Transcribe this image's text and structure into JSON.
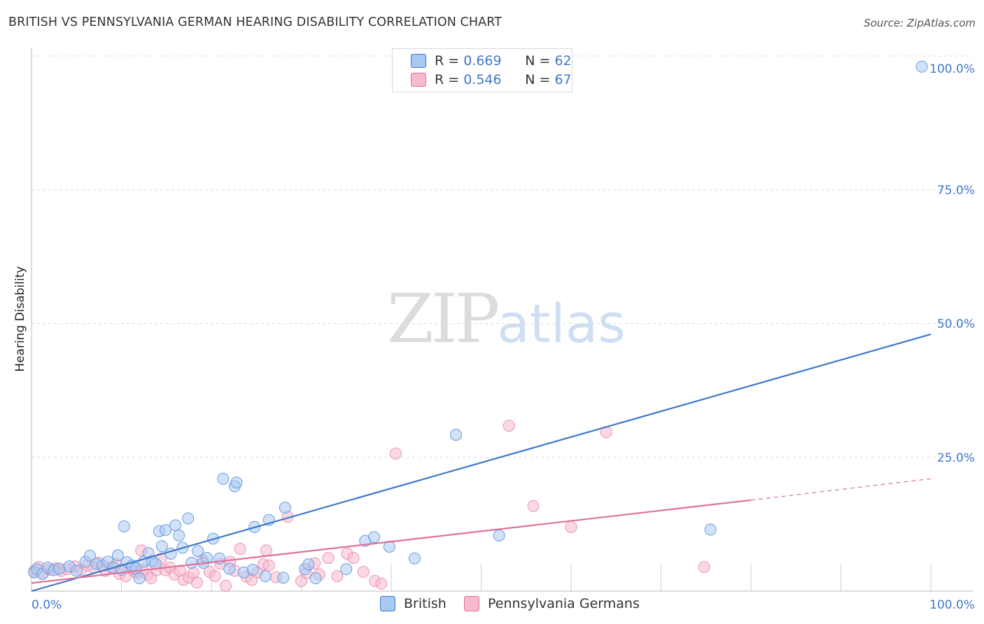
{
  "title": "BRITISH VS PENNSYLVANIA GERMAN HEARING DISABILITY CORRELATION CHART",
  "source": "Source: ZipAtlas.com",
  "watermark": {
    "zip": "ZIP",
    "atlas": "atlas"
  },
  "legend": {
    "rows": [
      {
        "r_label": "R =",
        "r_value": "0.669",
        "n_label": "N =",
        "n_value": "62",
        "color": "#a9c8f2"
      },
      {
        "r_label": "R =",
        "r_value": "0.546",
        "n_label": "N =",
        "n_value": "67",
        "color": "#f7b9ce"
      }
    ]
  },
  "colors": {
    "british": "#3f78c9",
    "penn": "#e07099",
    "british_fill": "#a9c8f2",
    "penn_fill": "#f7b9ce"
  },
  "chart_data": {
    "type": "scatter",
    "title": "BRITISH VS PENNSYLVANIA GERMAN HEARING DISABILITY CORRELATION CHART",
    "xlabel": "",
    "ylabel": "Hearing Disability",
    "xlim": [
      0,
      100
    ],
    "ylim": [
      0,
      100
    ],
    "x_tick_labels": [
      "0.0%",
      "100.0%"
    ],
    "y_tick_labels": [
      "100.0%",
      "75.0%",
      "50.0%",
      "25.0%"
    ],
    "y_tick_values": [
      100,
      75,
      50,
      25
    ],
    "grid": true,
    "legend_position": "top-center",
    "series": [
      {
        "name": "British",
        "color": "#3f78c9",
        "trend": {
          "x": [
            0,
            100
          ],
          "y": [
            0,
            48
          ]
        },
        "points": [
          [
            0.3,
            3.5
          ],
          [
            0.6,
            4.1
          ],
          [
            1.2,
            3.2
          ],
          [
            1.8,
            4.4
          ],
          [
            2.5,
            3.9
          ],
          [
            3.1,
            4.2
          ],
          [
            4.2,
            4.6
          ],
          [
            5.0,
            3.8
          ],
          [
            6.0,
            5.5
          ],
          [
            6.5,
            6.6
          ],
          [
            7.2,
            5.1
          ],
          [
            7.9,
            4.8
          ],
          [
            8.5,
            5.5
          ],
          [
            9.1,
            4.4
          ],
          [
            9.6,
            6.7
          ],
          [
            10.0,
            4.0
          ],
          [
            10.3,
            12.1
          ],
          [
            10.6,
            5.4
          ],
          [
            11.2,
            4.8
          ],
          [
            11.6,
            4.2
          ],
          [
            12.0,
            2.4
          ],
          [
            12.5,
            5.5
          ],
          [
            13.0,
            7.1
          ],
          [
            13.4,
            5.6
          ],
          [
            13.8,
            5.1
          ],
          [
            14.2,
            11.2
          ],
          [
            14.5,
            8.4
          ],
          [
            14.9,
            11.4
          ],
          [
            15.5,
            7.0
          ],
          [
            16.0,
            12.3
          ],
          [
            16.4,
            10.4
          ],
          [
            16.8,
            8.1
          ],
          [
            17.4,
            13.6
          ],
          [
            17.8,
            5.3
          ],
          [
            18.5,
            7.5
          ],
          [
            19.1,
            5.3
          ],
          [
            19.5,
            6.2
          ],
          [
            20.2,
            9.8
          ],
          [
            20.9,
            6.1
          ],
          [
            21.3,
            21.0
          ],
          [
            22.0,
            4.2
          ],
          [
            22.6,
            19.6
          ],
          [
            22.8,
            20.3
          ],
          [
            23.6,
            3.5
          ],
          [
            24.6,
            4.0
          ],
          [
            24.8,
            12.0
          ],
          [
            26.0,
            2.8
          ],
          [
            26.4,
            13.3
          ],
          [
            28.0,
            2.5
          ],
          [
            28.2,
            15.6
          ],
          [
            30.4,
            4.1
          ],
          [
            30.8,
            5.0
          ],
          [
            31.6,
            2.4
          ],
          [
            35.0,
            4.1
          ],
          [
            37.1,
            9.4
          ],
          [
            38.1,
            10.1
          ],
          [
            39.8,
            8.3
          ],
          [
            42.6,
            6.1
          ],
          [
            47.2,
            29.2
          ],
          [
            52.0,
            10.4
          ],
          [
            75.5,
            11.5
          ],
          [
            99.0,
            98.0
          ]
        ]
      },
      {
        "name": "Pennsylvania Germans",
        "color": "#e07099",
        "trend": {
          "x": [
            0,
            80
          ],
          "y": [
            1.5,
            17
          ]
        },
        "trend_ext": {
          "x": [
            80,
            100
          ],
          "y": [
            17,
            21
          ]
        },
        "points": [
          [
            0.3,
            3.8
          ],
          [
            0.8,
            4.5
          ],
          [
            1.3,
            3.4
          ],
          [
            2.0,
            4.0
          ],
          [
            2.7,
            4.3
          ],
          [
            3.3,
            3.8
          ],
          [
            4.0,
            4.1
          ],
          [
            4.8,
            4.6
          ],
          [
            5.5,
            4.0
          ],
          [
            6.2,
            4.8
          ],
          [
            6.9,
            4.4
          ],
          [
            7.5,
            5.3
          ],
          [
            8.2,
            3.8
          ],
          [
            8.8,
            4.4
          ],
          [
            9.4,
            5.0
          ],
          [
            9.8,
            3.2
          ],
          [
            10.5,
            2.8
          ],
          [
            11.0,
            4.2
          ],
          [
            11.5,
            3.6
          ],
          [
            11.8,
            3.4
          ],
          [
            12.2,
            7.6
          ],
          [
            12.9,
            3.1
          ],
          [
            13.3,
            2.4
          ],
          [
            13.9,
            3.9
          ],
          [
            14.4,
            6.1
          ],
          [
            14.9,
            3.9
          ],
          [
            15.4,
            4.4
          ],
          [
            15.9,
            3.1
          ],
          [
            16.5,
            3.8
          ],
          [
            16.9,
            2.1
          ],
          [
            17.5,
            2.5
          ],
          [
            18.0,
            3.4
          ],
          [
            18.4,
            1.6
          ],
          [
            19.0,
            5.8
          ],
          [
            19.8,
            3.6
          ],
          [
            20.4,
            2.8
          ],
          [
            21.0,
            5.1
          ],
          [
            21.6,
            1.0
          ],
          [
            22.1,
            5.5
          ],
          [
            22.6,
            3.8
          ],
          [
            23.2,
            7.9
          ],
          [
            23.9,
            2.7
          ],
          [
            24.5,
            2.1
          ],
          [
            25.1,
            3.5
          ],
          [
            25.8,
            5.0
          ],
          [
            26.1,
            7.6
          ],
          [
            26.4,
            4.8
          ],
          [
            27.2,
            2.6
          ],
          [
            28.5,
            13.9
          ],
          [
            30.0,
            1.9
          ],
          [
            30.6,
            3.4
          ],
          [
            31.5,
            5.2
          ],
          [
            32.0,
            3.1
          ],
          [
            33.0,
            6.2
          ],
          [
            34.0,
            2.8
          ],
          [
            35.1,
            7.0
          ],
          [
            35.8,
            6.2
          ],
          [
            36.9,
            3.6
          ],
          [
            38.2,
            1.9
          ],
          [
            38.9,
            1.4
          ],
          [
            40.5,
            25.7
          ],
          [
            53.1,
            30.9
          ],
          [
            55.8,
            15.9
          ],
          [
            60.0,
            12.0
          ],
          [
            63.9,
            29.7
          ],
          [
            74.8,
            4.5
          ],
          [
            12.4,
            4.0
          ]
        ]
      }
    ]
  },
  "bottom_legend": {
    "british": "British",
    "penn": "Pennsylvania Germans"
  }
}
